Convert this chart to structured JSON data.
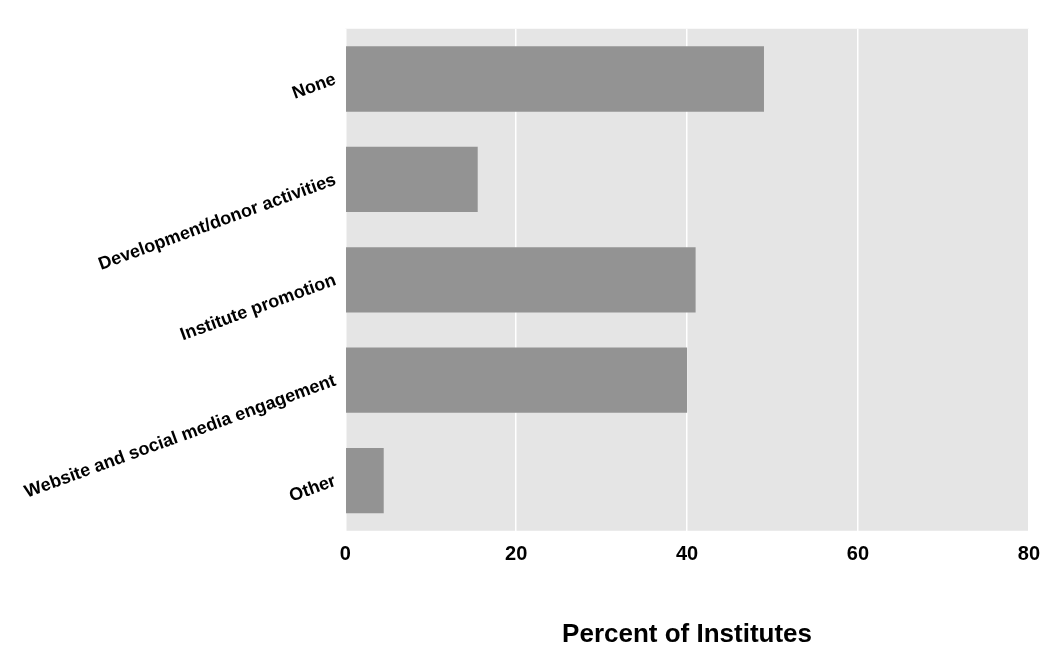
{
  "chart_data": {
    "type": "bar",
    "orientation": "horizontal",
    "categories": [
      "None",
      "Development/donor activities",
      "Institute promotion",
      "Website and social media engagement",
      "Other"
    ],
    "values": [
      49,
      15.5,
      41,
      40,
      4.5
    ],
    "color": "#939393",
    "xlabel": "Percent of Institutes",
    "xlim": [
      0,
      80
    ],
    "xticks": [
      0,
      20,
      40,
      60,
      80
    ],
    "grid": "x"
  }
}
